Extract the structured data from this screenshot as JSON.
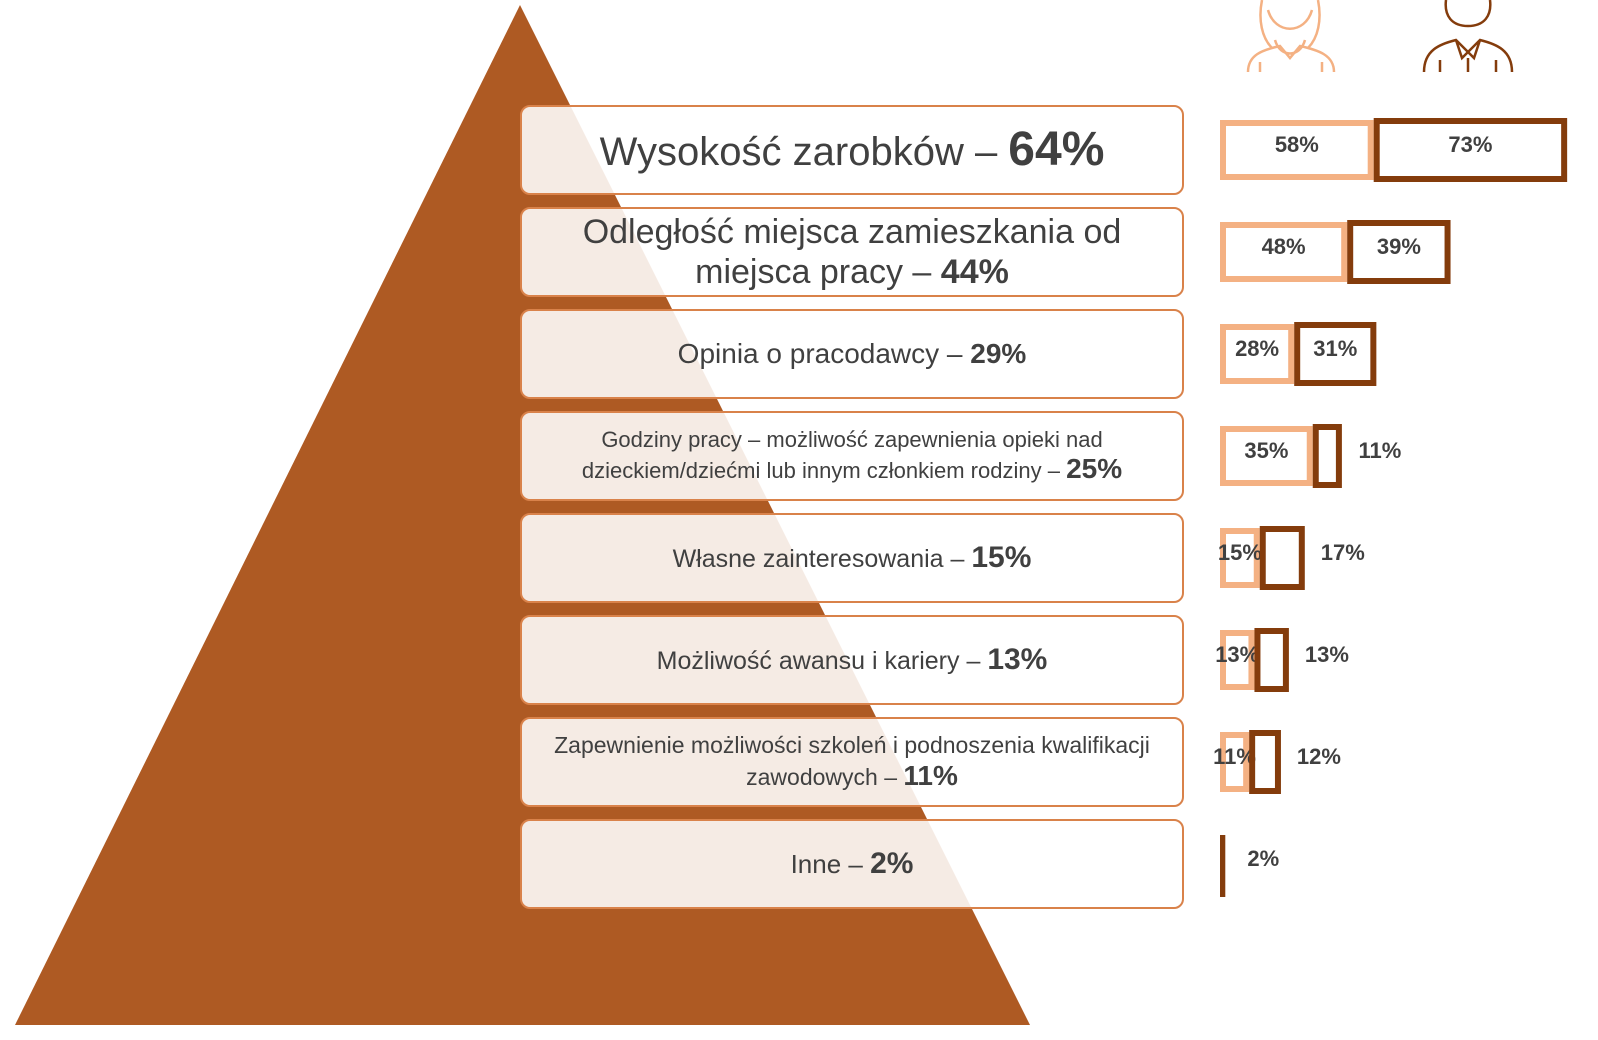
{
  "chart_data": {
    "type": "bar",
    "categories": [
      "Wysokość zarobków –",
      "Odległość miejsca zamieszkania od miejsca pracy –",
      "Opinia o pracodawcy –",
      "Godziny pracy – możliwość zapewnienia opieki nad dzieckiem/dziećmi lub innym członkiem rodziny –",
      "Własne zainteresowania –",
      "Możliwość awansu i kariery –",
      "Zapewnienie możliwości szkoleń i podnoszenia kwalifikacji zawodowych –",
      "Inne –"
    ],
    "totals": [
      64,
      44,
      29,
      25,
      15,
      13,
      11,
      2
    ],
    "total_labels": [
      "64%",
      "44%",
      "29%",
      "25%",
      "15%",
      "13%",
      "11%",
      "2%"
    ],
    "series": [
      {
        "color": "#f4b183",
        "values": [
          58,
          48,
          28,
          35,
          15,
          13,
          11,
          null
        ],
        "value_labels": [
          "58%",
          "48%",
          "28%",
          "35%",
          "15%",
          "13%",
          "11%",
          null
        ]
      },
      {
        "color": "#843c0c",
        "values": [
          73,
          39,
          31,
          11,
          17,
          13,
          12,
          2
        ],
        "value_labels": [
          "73%",
          "39%",
          "31%",
          "11%",
          "17%",
          "13%",
          "12%",
          "2%"
        ]
      }
    ],
    "triangle_color": "#ae5a23"
  }
}
